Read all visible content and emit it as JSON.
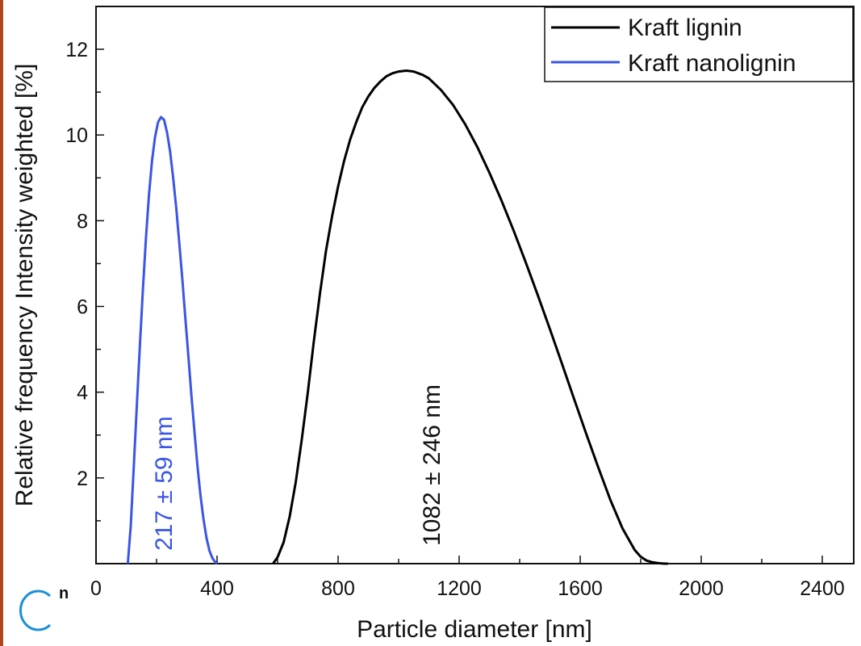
{
  "chart_data": {
    "type": "line",
    "xlabel": "Particle diameter [nm]",
    "ylabel": "Relative frequency Intensity weighted [%]",
    "xlim": [
      0,
      2500
    ],
    "ylim": [
      0,
      13
    ],
    "x_ticks": [
      0,
      400,
      800,
      1200,
      1600,
      2000,
      2400
    ],
    "y_ticks": [
      2,
      4,
      6,
      8,
      10,
      12
    ],
    "grid": false,
    "legend_position": "top-right",
    "series": [
      {
        "name": "Kraft lignin",
        "color": "#000000",
        "x": [
          585,
          600,
          620,
          640,
          660,
          680,
          700,
          720,
          740,
          760,
          780,
          800,
          820,
          840,
          860,
          880,
          900,
          920,
          940,
          960,
          980,
          1000,
          1025,
          1050,
          1080,
          1100,
          1140,
          1180,
          1220,
          1260,
          1300,
          1340,
          1380,
          1420,
          1460,
          1500,
          1540,
          1580,
          1620,
          1660,
          1700,
          1740,
          1780,
          1800,
          1820,
          1840,
          1860,
          1880,
          1890
        ],
        "values": [
          0.0,
          0.15,
          0.5,
          1.1,
          1.9,
          2.9,
          4.0,
          5.2,
          6.3,
          7.3,
          8.1,
          8.8,
          9.4,
          9.9,
          10.3,
          10.65,
          10.9,
          11.1,
          11.25,
          11.37,
          11.44,
          11.48,
          11.5,
          11.48,
          11.4,
          11.32,
          11.05,
          10.7,
          10.25,
          9.72,
          9.12,
          8.47,
          7.77,
          7.03,
          6.26,
          5.47,
          4.66,
          3.84,
          3.03,
          2.24,
          1.48,
          0.82,
          0.32,
          0.16,
          0.07,
          0.03,
          0.01,
          0.0,
          0.0
        ]
      },
      {
        "name": "Kraft nanolignin",
        "color": "#3b55e6",
        "x": [
          105,
          115,
          125,
          135,
          145,
          155,
          165,
          175,
          185,
          195,
          205,
          215,
          225,
          235,
          245,
          255,
          265,
          275,
          285,
          295,
          305,
          315,
          325,
          335,
          345,
          355,
          365,
          375,
          385,
          395,
          400
        ],
        "values": [
          0.0,
          0.9,
          2.3,
          3.7,
          5.1,
          6.4,
          7.6,
          8.6,
          9.4,
          9.95,
          10.3,
          10.42,
          10.35,
          10.05,
          9.6,
          9.0,
          8.3,
          7.5,
          6.65,
          5.75,
          4.85,
          3.95,
          3.1,
          2.3,
          1.6,
          1.05,
          0.6,
          0.3,
          0.12,
          0.03,
          0.0
        ]
      }
    ],
    "annotations": [
      {
        "text": "217 ± 59 nm",
        "series": 1
      },
      {
        "text": "1082 ± 246 nm",
        "series": 0
      }
    ]
  },
  "page_fragment": {
    "letter": "n"
  }
}
